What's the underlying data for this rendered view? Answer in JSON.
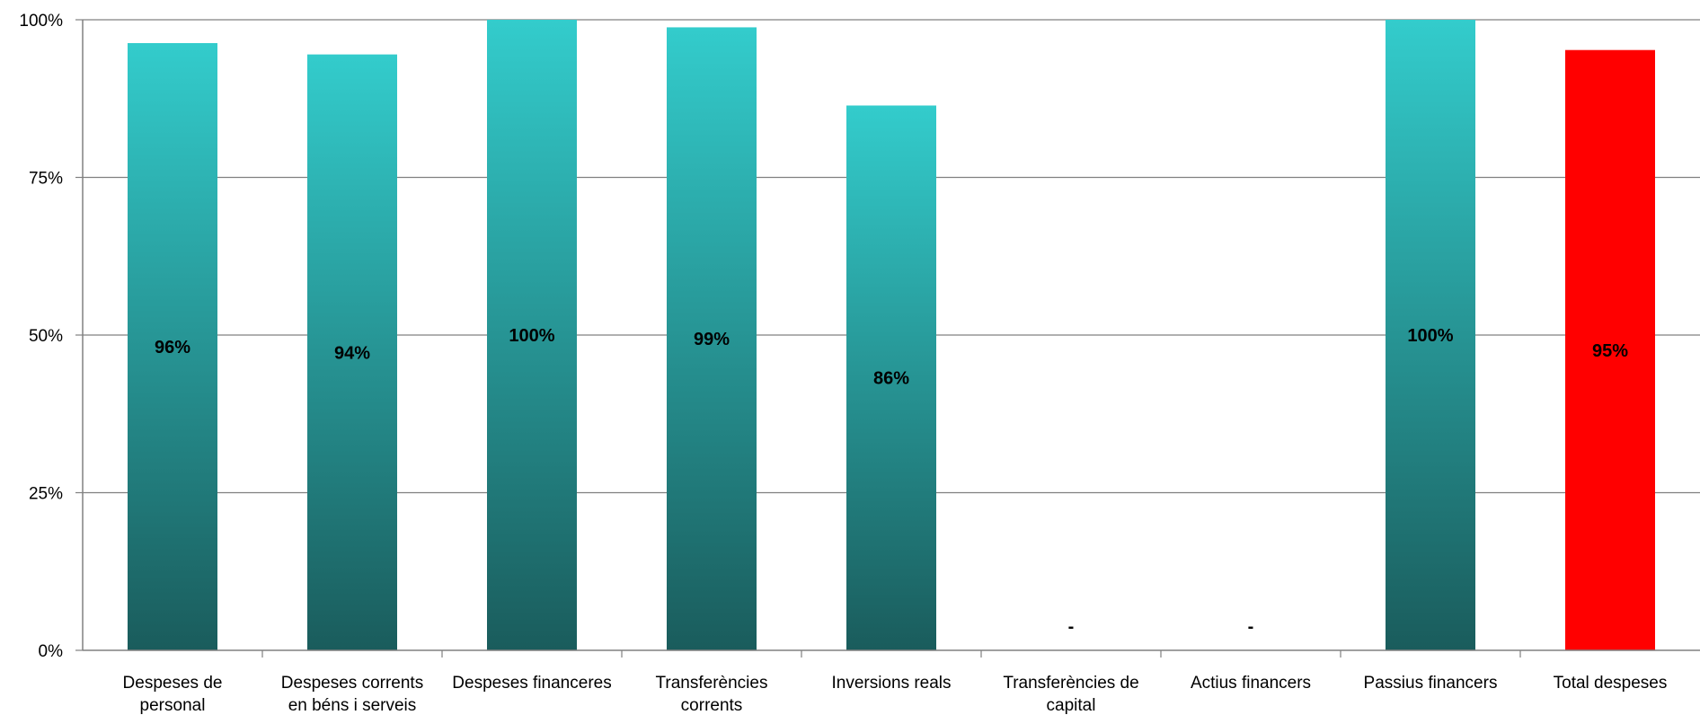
{
  "chart_data": {
    "type": "bar",
    "categories": [
      [
        "Despeses de",
        "personal"
      ],
      [
        "Despeses corrents",
        "en béns i serveis"
      ],
      [
        "Despeses financeres"
      ],
      [
        "Transferències",
        "corrents"
      ],
      [
        "Inversions reals"
      ],
      [
        "Transferències de",
        "capital"
      ],
      [
        "Actius financers"
      ],
      [
        "Passius financers"
      ],
      [
        "Total despeses"
      ]
    ],
    "values": [
      96.3,
      94.5,
      100,
      98.8,
      86.4,
      0,
      0,
      100,
      95.2
    ],
    "data_labels": [
      "96%",
      "94%",
      "100%",
      "99%",
      "86%",
      "-",
      "-",
      "100%",
      "95%"
    ],
    "ylim": [
      0,
      100
    ],
    "yticks": [
      0,
      25,
      50,
      75,
      100
    ],
    "ytick_labels": [
      "0%",
      "25%",
      "50%",
      "75%",
      "100%"
    ],
    "grid": true,
    "colors": {
      "bar_top": "#33cccc",
      "bar_bottom": "#1a5c5c",
      "total_bar": "#ff0000",
      "grid": "#808080",
      "axis": "#808080"
    },
    "highlight_index": 8
  }
}
